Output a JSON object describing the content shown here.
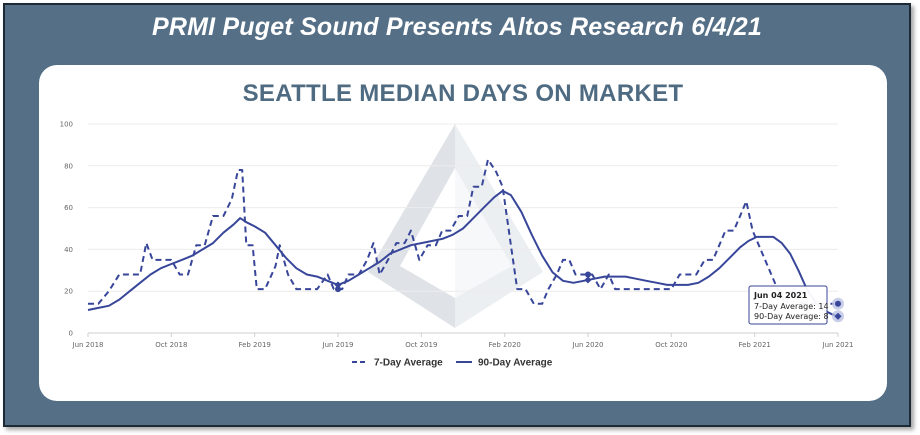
{
  "banner": "PRMI Puget Sound Presents Altos Research 6/4/21",
  "colors": {
    "frame": "#557086",
    "title": "#4f6b82",
    "series": "#38469a",
    "watermark": "#dfe3e8"
  },
  "chart_data": {
    "type": "line",
    "title": "SEATTLE MEDIAN DAYS ON MARKET",
    "xlabel": "",
    "ylabel": "",
    "xlim": [
      0,
      36
    ],
    "ylim": [
      0,
      100
    ],
    "y_ticks": [
      "0",
      "20",
      "40",
      "60",
      "80",
      "100"
    ],
    "x_ticks": [
      {
        "label": "Jun 2018",
        "m": 0
      },
      {
        "label": "Oct 2018",
        "m": 4
      },
      {
        "label": "Feb 2019",
        "m": 8
      },
      {
        "label": "Jun 2019",
        "m": 12
      },
      {
        "label": "Oct 2019",
        "m": 16
      },
      {
        "label": "Feb 2020",
        "m": 20
      },
      {
        "label": "Jun 2020",
        "m": 24
      },
      {
        "label": "Oct 2020",
        "m": 28
      },
      {
        "label": "Feb 2021",
        "m": 32
      },
      {
        "label": "Jun 2021",
        "m": 36
      }
    ],
    "grid": true,
    "legend_position": "bottom",
    "series": [
      {
        "name": "7-Day Average",
        "style": "dashed",
        "points": [
          [
            0.0,
            14
          ],
          [
            0.5,
            14
          ],
          [
            1.0,
            20
          ],
          [
            1.5,
            28
          ],
          [
            2.0,
            28
          ],
          [
            2.5,
            28
          ],
          [
            2.8,
            43
          ],
          [
            3.1,
            35
          ],
          [
            3.5,
            35
          ],
          [
            4.0,
            35
          ],
          [
            4.4,
            28
          ],
          [
            4.8,
            28
          ],
          [
            5.2,
            42
          ],
          [
            5.6,
            42
          ],
          [
            6.0,
            56
          ],
          [
            6.5,
            56
          ],
          [
            6.9,
            64
          ],
          [
            7.2,
            78
          ],
          [
            7.4,
            78
          ],
          [
            7.6,
            42
          ],
          [
            7.9,
            42
          ],
          [
            8.1,
            21
          ],
          [
            8.5,
            21
          ],
          [
            9.0,
            32
          ],
          [
            9.2,
            42
          ],
          [
            9.6,
            28
          ],
          [
            10.0,
            21
          ],
          [
            10.5,
            21
          ],
          [
            11.0,
            21
          ],
          [
            11.5,
            28
          ],
          [
            11.8,
            21
          ],
          [
            12.2,
            21
          ],
          [
            12.5,
            28
          ],
          [
            13.0,
            28
          ],
          [
            13.4,
            35
          ],
          [
            13.7,
            43
          ],
          [
            14.0,
            28
          ],
          [
            14.4,
            35
          ],
          [
            14.8,
            43
          ],
          [
            15.2,
            43
          ],
          [
            15.5,
            49
          ],
          [
            15.9,
            35
          ],
          [
            16.3,
            42
          ],
          [
            16.7,
            42
          ],
          [
            17.0,
            49
          ],
          [
            17.4,
            49
          ],
          [
            17.8,
            56
          ],
          [
            18.2,
            56
          ],
          [
            18.5,
            70
          ],
          [
            18.9,
            70
          ],
          [
            19.2,
            83
          ],
          [
            19.6,
            77
          ],
          [
            19.9,
            70
          ],
          [
            20.3,
            42
          ],
          [
            20.6,
            21
          ],
          [
            21.0,
            21
          ],
          [
            21.4,
            14
          ],
          [
            21.8,
            14
          ],
          [
            22.1,
            21
          ],
          [
            22.5,
            28
          ],
          [
            22.8,
            35
          ],
          [
            23.1,
            35
          ],
          [
            23.4,
            28
          ],
          [
            23.8,
            28
          ],
          [
            24.2,
            28
          ],
          [
            24.6,
            21
          ],
          [
            25.0,
            28
          ],
          [
            25.3,
            21
          ],
          [
            25.8,
            21
          ],
          [
            26.2,
            21
          ],
          [
            26.7,
            21
          ],
          [
            27.2,
            21
          ],
          [
            27.6,
            21
          ],
          [
            28.0,
            21
          ],
          [
            28.4,
            28
          ],
          [
            28.8,
            28
          ],
          [
            29.2,
            28
          ],
          [
            29.6,
            35
          ],
          [
            30.0,
            35
          ],
          [
            30.3,
            42
          ],
          [
            30.6,
            49
          ],
          [
            31.0,
            49
          ],
          [
            31.3,
            56
          ],
          [
            31.6,
            63
          ],
          [
            31.9,
            49
          ],
          [
            32.2,
            42
          ],
          [
            32.5,
            35
          ],
          [
            32.8,
            28
          ],
          [
            33.1,
            21
          ],
          [
            33.5,
            14
          ],
          [
            33.9,
            21
          ],
          [
            34.3,
            14
          ],
          [
            34.7,
            14
          ],
          [
            35.1,
            14
          ],
          [
            35.5,
            14
          ],
          [
            35.8,
            14
          ]
        ]
      },
      {
        "name": "90-Day Average",
        "style": "solid",
        "points": [
          [
            0.0,
            11
          ],
          [
            0.5,
            12
          ],
          [
            1.0,
            13
          ],
          [
            1.5,
            16
          ],
          [
            2.0,
            20
          ],
          [
            2.5,
            24
          ],
          [
            3.0,
            28
          ],
          [
            3.5,
            31
          ],
          [
            4.0,
            33
          ],
          [
            4.5,
            35
          ],
          [
            5.0,
            37
          ],
          [
            5.5,
            40
          ],
          [
            6.0,
            43
          ],
          [
            6.5,
            48
          ],
          [
            7.0,
            52
          ],
          [
            7.3,
            55
          ],
          [
            7.6,
            53
          ],
          [
            8.0,
            51
          ],
          [
            8.5,
            48
          ],
          [
            9.0,
            42
          ],
          [
            9.5,
            36
          ],
          [
            10.0,
            31
          ],
          [
            10.5,
            28
          ],
          [
            11.0,
            27
          ],
          [
            11.5,
            25
          ],
          [
            12.0,
            23
          ],
          [
            12.5,
            25
          ],
          [
            13.0,
            28
          ],
          [
            13.5,
            31
          ],
          [
            14.0,
            34
          ],
          [
            14.5,
            38
          ],
          [
            15.0,
            40
          ],
          [
            15.5,
            42
          ],
          [
            16.0,
            43
          ],
          [
            16.5,
            44
          ],
          [
            17.0,
            45
          ],
          [
            17.5,
            47
          ],
          [
            18.0,
            50
          ],
          [
            18.5,
            55
          ],
          [
            19.0,
            60
          ],
          [
            19.5,
            65
          ],
          [
            19.9,
            68
          ],
          [
            20.3,
            66
          ],
          [
            20.8,
            58
          ],
          [
            21.3,
            47
          ],
          [
            21.8,
            37
          ],
          [
            22.3,
            29
          ],
          [
            22.8,
            25
          ],
          [
            23.3,
            24
          ],
          [
            23.8,
            25
          ],
          [
            24.3,
            26
          ],
          [
            24.8,
            27
          ],
          [
            25.3,
            27
          ],
          [
            25.8,
            27
          ],
          [
            26.3,
            26
          ],
          [
            26.8,
            25
          ],
          [
            27.3,
            24
          ],
          [
            27.8,
            23
          ],
          [
            28.3,
            23
          ],
          [
            28.8,
            23
          ],
          [
            29.3,
            24
          ],
          [
            29.8,
            27
          ],
          [
            30.3,
            31
          ],
          [
            30.8,
            36
          ],
          [
            31.3,
            41
          ],
          [
            31.7,
            44
          ],
          [
            32.1,
            46
          ],
          [
            32.5,
            46
          ],
          [
            32.9,
            46
          ],
          [
            33.3,
            43
          ],
          [
            33.7,
            38
          ],
          [
            34.1,
            30
          ],
          [
            34.5,
            21
          ],
          [
            34.9,
            15
          ],
          [
            35.3,
            11
          ],
          [
            35.7,
            9
          ],
          [
            36.0,
            8
          ]
        ]
      }
    ],
    "tooltip": {
      "date": "Jun 04 2021",
      "line1": "7-Day Average: 14",
      "line2": "90-Day Average: 8"
    }
  }
}
